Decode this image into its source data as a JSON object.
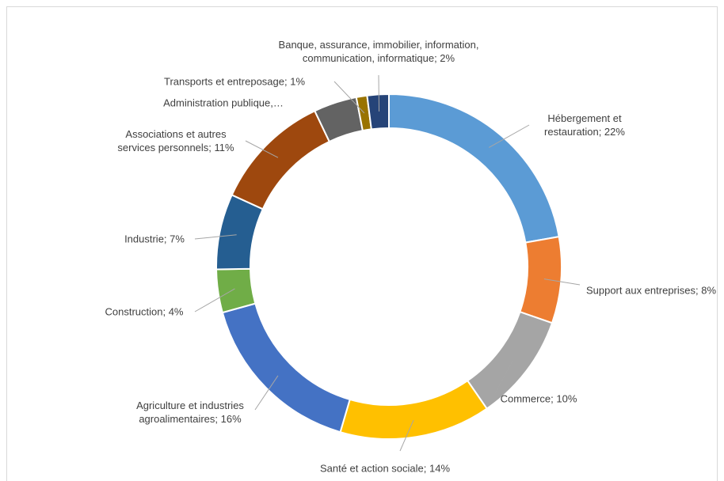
{
  "chart_data": {
    "type": "donut",
    "categories": [
      "Hébergement et restauration",
      "Support aux entreprises",
      "Commerce",
      "Santé et action sociale",
      "Agriculture et industries agroalimentaires",
      "Construction",
      "Industrie",
      "Associations et autres services personnels",
      "Administration publique",
      "Transports et entreposage",
      "Banque, assurance, immobilier, information, communication, informatique"
    ],
    "values": [
      22,
      8,
      10,
      14,
      16,
      4,
      7,
      11,
      4,
      1,
      2
    ],
    "value_labels": [
      "Hébergement et restauration; 22%",
      "Support aux entreprises; 8%",
      "Commerce; 10%",
      "Santé et action sociale; 14%",
      "Agriculture et industries agroalimentaires; 16%",
      "Construction; 4%",
      "Industrie; 7%",
      "Associations et autres services personnels; 11%",
      "Administration publique,…",
      "Transports et entreposage; 1%",
      "Banque, assurance, immobilier, information, communication, informatique; 2%"
    ],
    "colors": [
      "#5b9bd5",
      "#ed7d31",
      "#a5a5a5",
      "#ffc000",
      "#4472c4",
      "#70ad47",
      "#255e91",
      "#9e480e",
      "#636363",
      "#997300",
      "#264478"
    ]
  }
}
